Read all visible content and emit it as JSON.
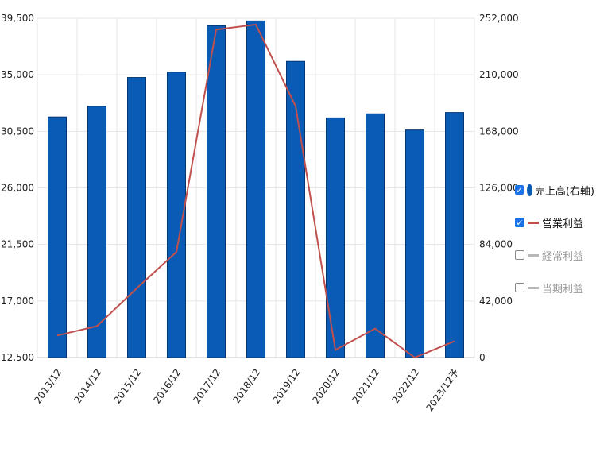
{
  "chart_data": {
    "type": "bar",
    "categories": [
      "2013/12",
      "2014/12",
      "2015/12",
      "2016/12",
      "2017/12",
      "2018/12",
      "2019/12",
      "2020/12",
      "2021/12",
      "2022/12",
      "2023/12予"
    ],
    "series": [
      {
        "name": "売上高(右軸)",
        "type": "bar",
        "axis": "right",
        "values": [
          178700,
          186600,
          208000,
          212000,
          246500,
          250000,
          220000,
          178000,
          181000,
          169000,
          182000
        ]
      },
      {
        "name": "営業利益",
        "type": "line",
        "axis": "left",
        "values": [
          14250,
          15000,
          18000,
          20900,
          38600,
          39000,
          32500,
          13100,
          14800,
          12500,
          13800
        ]
      }
    ],
    "left_axis": {
      "ylim": [
        12500,
        39500
      ],
      "ticks": [
        "12,500",
        "17,000",
        "21,500",
        "26,000",
        "30,500",
        "35,000",
        "39,500"
      ]
    },
    "right_axis": {
      "ylim": [
        0,
        252000
      ],
      "ticks": [
        "0",
        "42,000",
        "84,000",
        "126,000",
        "168,000",
        "210,000",
        "252,000"
      ]
    },
    "grid": true,
    "legend_position": "right",
    "colors": {
      "bar": "#0a5bb5",
      "bar_edge": "#04356e",
      "line": "#c0504d",
      "off": "#9a9a9a"
    }
  },
  "legend": {
    "items": [
      {
        "label": "売上高(右軸)",
        "checked": true,
        "marker": "circle",
        "color": "#0a5bb5"
      },
      {
        "label": "営業利益",
        "checked": true,
        "marker": "line",
        "color": "#c0504d"
      },
      {
        "label": "経常利益",
        "checked": false,
        "marker": "line",
        "color": "#9a9a9a"
      },
      {
        "label": "当期利益",
        "checked": false,
        "marker": "line",
        "color": "#9a9a9a"
      }
    ]
  }
}
